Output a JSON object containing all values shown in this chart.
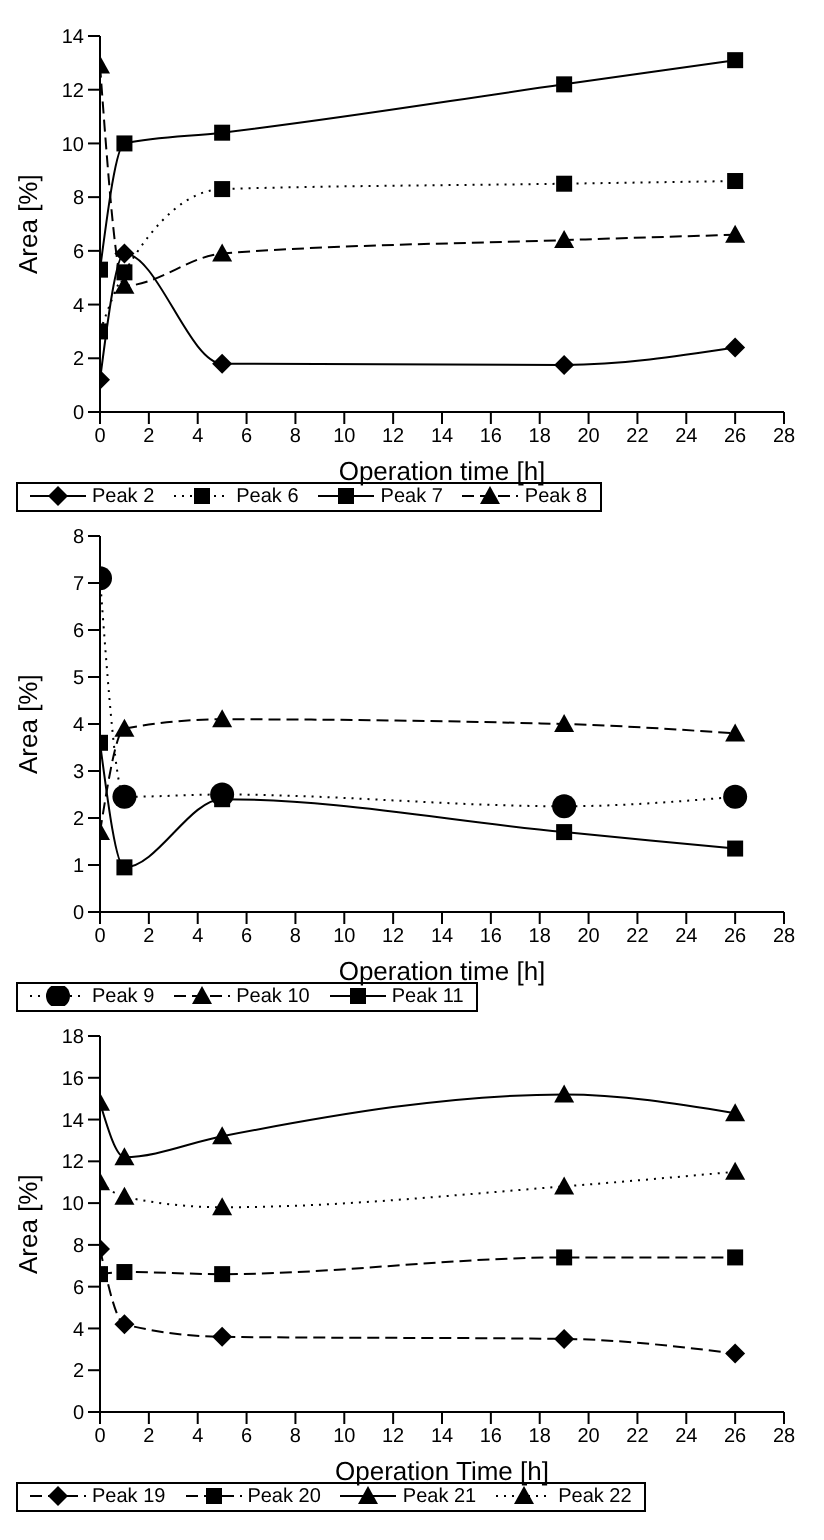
{
  "chart_data": [
    {
      "type": "line",
      "xlabel": "Operation time [h]",
      "ylabel": "Area [%]",
      "x": [
        0,
        1,
        5,
        19,
        26
      ],
      "xlim": [
        0,
        28
      ],
      "xticks": [
        0,
        2,
        4,
        6,
        8,
        10,
        12,
        14,
        16,
        18,
        20,
        22,
        24,
        26,
        28
      ],
      "ylim": [
        0,
        14
      ],
      "yticks": [
        0,
        2,
        4,
        6,
        8,
        10,
        12,
        14
      ],
      "grid": false,
      "legend": "bottom",
      "series": [
        {
          "name": "Peak 2",
          "color": "#000000",
          "marker": "diamond",
          "line_style": "solid",
          "values": [
            1.2,
            5.9,
            1.8,
            1.75,
            2.4
          ]
        },
        {
          "name": "Peak 6",
          "color": "#000000",
          "marker": "square",
          "line_style": "dotted",
          "values": [
            3.0,
            5.2,
            8.3,
            8.5,
            8.6
          ]
        },
        {
          "name": "Peak 7",
          "color": "#000000",
          "marker": "square",
          "line_style": "solid",
          "values": [
            5.3,
            10.0,
            10.4,
            12.2,
            13.1
          ]
        },
        {
          "name": "Peak 8",
          "color": "#000000",
          "marker": "triangle",
          "line_style": "dashed",
          "values": [
            12.9,
            4.7,
            5.9,
            6.4,
            6.6
          ]
        }
      ]
    },
    {
      "type": "line",
      "xlabel": "Operation time [h]",
      "ylabel": "Area [%]",
      "x": [
        0,
        1,
        5,
        19,
        26
      ],
      "xlim": [
        0,
        28
      ],
      "xticks": [
        0,
        2,
        4,
        6,
        8,
        10,
        12,
        14,
        16,
        18,
        20,
        22,
        24,
        26,
        28
      ],
      "ylim": [
        0,
        8
      ],
      "yticks": [
        0,
        1,
        2,
        3,
        4,
        5,
        6,
        7,
        8
      ],
      "grid": false,
      "legend": "bottom",
      "series": [
        {
          "name": "Peak 9",
          "color": "#000000",
          "marker": "circle",
          "line_style": "dotted",
          "values": [
            7.1,
            2.45,
            2.5,
            2.25,
            2.45
          ]
        },
        {
          "name": "Peak 10",
          "color": "#000000",
          "marker": "triangle",
          "line_style": "dashed",
          "values": [
            1.7,
            3.9,
            4.1,
            4.0,
            3.8
          ]
        },
        {
          "name": "Peak 11",
          "color": "#000000",
          "marker": "square",
          "line_style": "solid",
          "values": [
            3.6,
            0.95,
            2.4,
            1.7,
            1.35
          ]
        }
      ]
    },
    {
      "type": "line",
      "xlabel": "Operation Time [h]",
      "ylabel": "Area [%]",
      "x": [
        0,
        1,
        5,
        19,
        26
      ],
      "xlim": [
        0,
        28
      ],
      "xticks": [
        0,
        2,
        4,
        6,
        8,
        10,
        12,
        14,
        16,
        18,
        20,
        22,
        24,
        26,
        28
      ],
      "ylim": [
        0,
        18
      ],
      "yticks": [
        0,
        2,
        4,
        6,
        8,
        10,
        12,
        14,
        16,
        18
      ],
      "grid": false,
      "legend": "bottom",
      "series": [
        {
          "name": "Peak 19",
          "color": "#000000",
          "marker": "diamond",
          "line_style": "dashed",
          "values": [
            7.8,
            4.2,
            3.6,
            3.5,
            2.8
          ]
        },
        {
          "name": "Peak 20",
          "color": "#000000",
          "marker": "square",
          "line_style": "dashed",
          "values": [
            6.6,
            6.7,
            6.6,
            7.4,
            7.4
          ]
        },
        {
          "name": "Peak 21",
          "color": "#000000",
          "marker": "triangle",
          "line_style": "solid",
          "values": [
            14.8,
            12.2,
            13.2,
            15.2,
            14.3
          ]
        },
        {
          "name": "Peak 22",
          "color": "#000000",
          "marker": "triangle",
          "line_style": "dotted",
          "values": [
            11.0,
            10.3,
            9.8,
            10.8,
            11.5
          ]
        }
      ]
    }
  ]
}
